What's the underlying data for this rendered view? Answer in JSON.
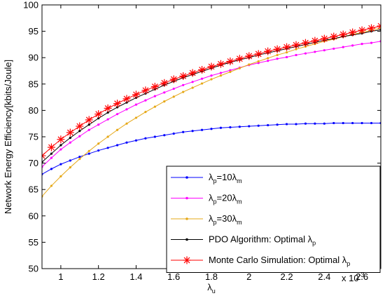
{
  "chart_data": {
    "type": "line",
    "title": "",
    "xlabel": "λ",
    "xlabel_sub": "u",
    "ylabel": "Network Energy Efficiency[kbits/Joule]",
    "x_multiplier_label": "x 10",
    "x_multiplier_exp": "-3",
    "xlim": [
      0.9,
      2.7
    ],
    "ylim": [
      50,
      100
    ],
    "xticks": [
      1,
      1.2,
      1.4,
      1.6,
      1.8,
      2,
      2.2,
      2.4,
      2.6
    ],
    "xtick_labels": [
      "1",
      "1.2",
      "1.4",
      "1.6",
      "1.8",
      "2",
      "2.2",
      "2.4",
      "2.6"
    ],
    "yticks": [
      50,
      55,
      60,
      65,
      70,
      75,
      80,
      85,
      90,
      95,
      100
    ],
    "ytick_labels": [
      "50",
      "55",
      "60",
      "65",
      "70",
      "75",
      "80",
      "85",
      "90",
      "95",
      "100"
    ],
    "grid": false,
    "legend_position": "bottom-right",
    "x": [
      0.9,
      0.95,
      1.0,
      1.05,
      1.1,
      1.15,
      1.2,
      1.25,
      1.3,
      1.35,
      1.4,
      1.45,
      1.5,
      1.55,
      1.6,
      1.65,
      1.7,
      1.75,
      1.8,
      1.85,
      1.9,
      1.95,
      2.0,
      2.05,
      2.1,
      2.15,
      2.2,
      2.25,
      2.3,
      2.35,
      2.4,
      2.45,
      2.5,
      2.55,
      2.6,
      2.65,
      2.7
    ],
    "series": [
      {
        "legend_main": "λ",
        "legend_parts": [
          [
            "p",
            "sub"
          ],
          [
            "=10λ",
            "normal"
          ],
          [
            "m",
            "sub"
          ]
        ],
        "color": "#0000ff",
        "marker": "dot",
        "values": [
          67.9,
          68.9,
          69.8,
          70.5,
          71.2,
          71.8,
          72.4,
          72.9,
          73.4,
          73.9,
          74.3,
          74.7,
          75.0,
          75.3,
          75.6,
          75.9,
          76.1,
          76.3,
          76.5,
          76.7,
          76.8,
          76.9,
          77.0,
          77.1,
          77.2,
          77.3,
          77.4,
          77.4,
          77.5,
          77.5,
          77.5,
          77.6,
          77.6,
          77.6,
          77.6,
          77.6,
          77.6
        ]
      },
      {
        "legend_main": "λ",
        "legend_parts": [
          [
            "p",
            "sub"
          ],
          [
            "=20λ",
            "normal"
          ],
          [
            "m",
            "sub"
          ]
        ],
        "color": "#ff00ff",
        "marker": "dot",
        "values": [
          69.3,
          71.0,
          72.6,
          73.9,
          75.1,
          76.3,
          77.3,
          78.3,
          79.3,
          80.2,
          81.1,
          81.9,
          82.7,
          83.4,
          84.1,
          84.8,
          85.4,
          86.0,
          86.6,
          87.1,
          87.6,
          88.1,
          88.6,
          89.0,
          89.4,
          89.8,
          90.1,
          90.5,
          90.8,
          91.1,
          91.4,
          91.7,
          92.0,
          92.3,
          92.6,
          92.8,
          93.1
        ]
      },
      {
        "legend_main": "λ",
        "legend_parts": [
          [
            "p",
            "sub"
          ],
          [
            "=30λ",
            "normal"
          ],
          [
            "m",
            "sub"
          ]
        ],
        "color": "#e6a817",
        "marker": "dot",
        "values": [
          63.7,
          65.7,
          67.5,
          69.2,
          70.8,
          72.3,
          73.7,
          75.0,
          76.3,
          77.5,
          78.6,
          79.7,
          80.7,
          81.7,
          82.6,
          83.5,
          84.3,
          85.1,
          85.9,
          86.6,
          87.3,
          88.0,
          88.7,
          89.3,
          89.9,
          90.5,
          91.0,
          91.6,
          92.1,
          92.6,
          93.1,
          93.5,
          94.0,
          94.4,
          94.8,
          95.2,
          95.6
        ]
      },
      {
        "legend_main": "PDO Algorithm: Optimal λ",
        "legend_parts": [
          [
            "p",
            "sub"
          ]
        ],
        "color": "#000000",
        "marker": "dot",
        "values": [
          70.2,
          71.8,
          73.4,
          74.8,
          76.1,
          77.3,
          78.5,
          79.6,
          80.6,
          81.5,
          82.4,
          83.2,
          84.0,
          84.8,
          85.5,
          86.2,
          86.8,
          87.4,
          88.0,
          88.6,
          89.1,
          89.6,
          90.0,
          90.5,
          90.9,
          91.3,
          91.7,
          92.1,
          92.5,
          92.9,
          93.3,
          93.6,
          94.0,
          94.3,
          94.6,
          95.0,
          95.3
        ]
      },
      {
        "legend_main": "Monte Carlo Simulation: Optimal λ",
        "legend_parts": [
          [
            "p",
            "sub"
          ]
        ],
        "color": "#ff0000",
        "marker": "star",
        "values": [
          71.4,
          73.0,
          74.5,
          75.8,
          77.0,
          78.2,
          79.3,
          80.4,
          81.3,
          82.2,
          83.0,
          83.8,
          84.5,
          85.2,
          85.9,
          86.5,
          87.1,
          87.7,
          88.3,
          88.8,
          89.3,
          89.8,
          90.3,
          90.7,
          91.2,
          91.6,
          92.0,
          92.4,
          92.8,
          93.2,
          93.6,
          94.0,
          94.4,
          94.8,
          95.2,
          95.6,
          96.0
        ]
      }
    ]
  }
}
